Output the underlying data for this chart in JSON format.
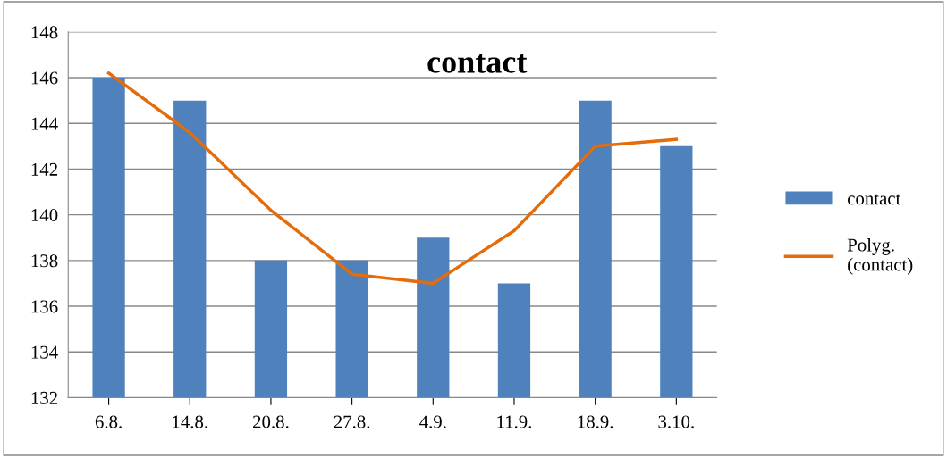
{
  "chart_data": {
    "type": "bar",
    "title": "contact",
    "categories": [
      "6.8.",
      "14.8.",
      "20.8.",
      "27.8.",
      "4.9.",
      "11.9.",
      "18.9.",
      "3.10."
    ],
    "series": [
      {
        "name": "contact",
        "color": "#4f81bd",
        "values": [
          146,
          145,
          138,
          138,
          139,
          137,
          145,
          143
        ]
      },
      {
        "name": "Polyg.\n(contact)",
        "type": "line",
        "color": "#e46c0a",
        "values": [
          146.2,
          143.6,
          140.2,
          137.4,
          137.0,
          139.3,
          143.0,
          143.3
        ]
      }
    ],
    "ylim": [
      132,
      148
    ],
    "yticks": [
      132,
      134,
      136,
      138,
      140,
      142,
      144,
      146,
      148
    ],
    "grid": "y",
    "legend": "right"
  }
}
